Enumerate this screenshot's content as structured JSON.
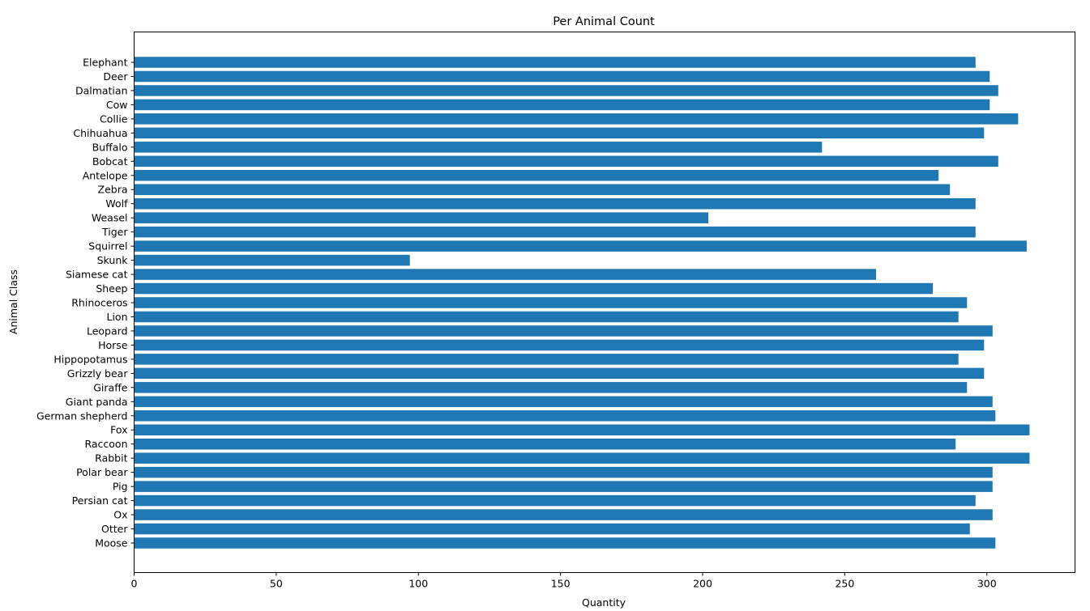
{
  "chart_data": {
    "type": "bar",
    "orientation": "horizontal",
    "title": "Per Animal Count",
    "xlabel": "Quantity",
    "ylabel": "Animal Class",
    "xlim": [
      0,
      331
    ],
    "xticks": [
      0,
      50,
      100,
      150,
      200,
      250,
      300
    ],
    "grid": false,
    "bar_color": "#1f77b4",
    "categories": [
      "Moose",
      "Otter",
      "Ox",
      "Persian cat",
      "Pig",
      "Polar bear",
      "Rabbit",
      "Raccoon",
      "Fox",
      "German shepherd",
      "Giant panda",
      "Giraffe",
      "Grizzly bear",
      "Hippopotamus",
      "Horse",
      "Leopard",
      "Lion",
      "Rhinoceros",
      "Sheep",
      "Siamese cat",
      "Skunk",
      "Squirrel",
      "Tiger",
      "Weasel",
      "Wolf",
      "Zebra",
      "Antelope",
      "Bobcat",
      "Buffalo",
      "Chihuahua",
      "Collie",
      "Cow",
      "Dalmatian",
      "Deer",
      "Elephant"
    ],
    "values": [
      303,
      294,
      302,
      296,
      302,
      302,
      315,
      289,
      315,
      303,
      302,
      293,
      299,
      290,
      299,
      302,
      290,
      293,
      281,
      261,
      97,
      314,
      296,
      202,
      296,
      287,
      283,
      304,
      242,
      299,
      311,
      301,
      304,
      301,
      296
    ]
  }
}
